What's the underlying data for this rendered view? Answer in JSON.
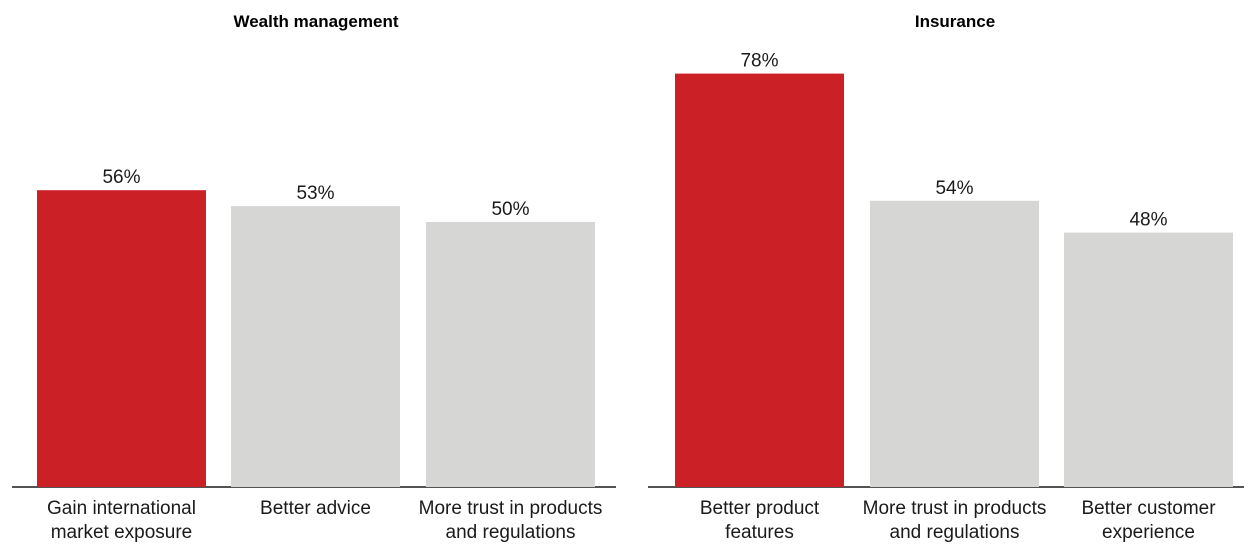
{
  "chart_data": [
    {
      "type": "bar",
      "title": "Wealth management",
      "categories": [
        "Gain international market exposure",
        "Better advice",
        "More trust in products and regulations"
      ],
      "category_lines": [
        [
          "Gain international",
          "market exposure"
        ],
        [
          "Better advice"
        ],
        [
          "More trust in products",
          "and regulations"
        ]
      ],
      "values": [
        56,
        53,
        50
      ],
      "value_labels": [
        "56%",
        "53%",
        "50%"
      ],
      "highlight_index": 0,
      "ylim": [
        0,
        100
      ],
      "grid": false,
      "xlabel": "",
      "ylabel": ""
    },
    {
      "type": "bar",
      "title": "Insurance",
      "categories": [
        "Better product features",
        "More trust in products and regulations",
        "Better customer experience"
      ],
      "category_lines": [
        [
          "Better product",
          "features"
        ],
        [
          "More trust in products",
          "and regulations"
        ],
        [
          "Better customer",
          "experience"
        ]
      ],
      "values": [
        78,
        54,
        48
      ],
      "value_labels": [
        "78%",
        "54%",
        "48%"
      ],
      "highlight_index": 0,
      "ylim": [
        0,
        100
      ],
      "grid": false,
      "xlabel": "",
      "ylabel": ""
    }
  ],
  "colors": {
    "highlight": "#cc2027",
    "bar": "#d6d6d5",
    "text": "#1a1a1a",
    "axis": "#1a1a1a"
  }
}
